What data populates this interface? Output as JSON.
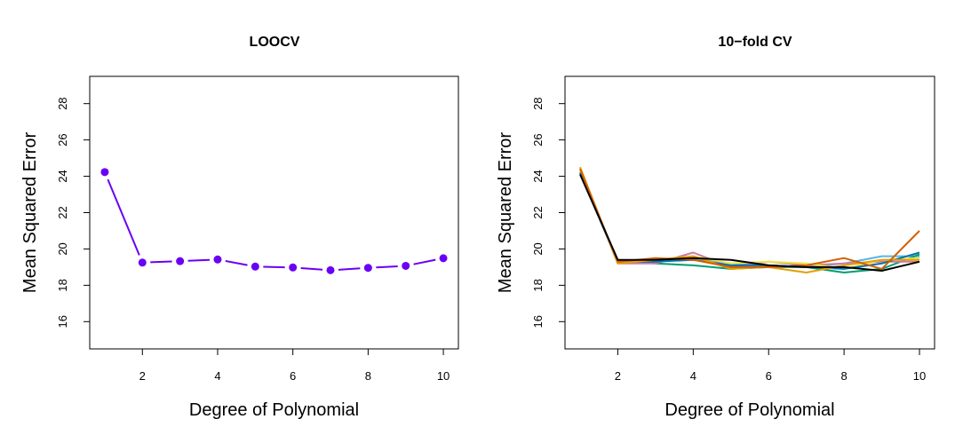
{
  "chart_data": [
    {
      "type": "line",
      "title": "LOOCV",
      "xlabel": "Degree of Polynomial",
      "ylabel": "Mean Squared Error",
      "xlim": [
        0.6,
        10.4
      ],
      "ylim": [
        14.5,
        29.5
      ],
      "xticks": [
        2,
        4,
        6,
        8,
        10
      ],
      "yticks": [
        16,
        18,
        20,
        22,
        24,
        26,
        28
      ],
      "markers": true,
      "series": [
        {
          "color": "#6a00f4",
          "x": [
            1,
            2,
            3,
            4,
            5,
            6,
            7,
            8,
            9,
            10
          ],
          "values": [
            24.23,
            19.25,
            19.33,
            19.42,
            19.03,
            18.98,
            18.83,
            18.96,
            19.07,
            19.49
          ]
        }
      ]
    },
    {
      "type": "line",
      "title": "10−fold CV",
      "xlabel": "Degree of Polynomial",
      "ylabel": "Mean Squared Error",
      "xlim": [
        0.6,
        10.4
      ],
      "ylim": [
        14.5,
        29.5
      ],
      "xticks": [
        2,
        4,
        6,
        8,
        10
      ],
      "yticks": [
        16,
        18,
        20,
        22,
        24,
        26,
        28
      ],
      "markers": false,
      "series": [
        {
          "color": "#56b4e9",
          "x": [
            1,
            2,
            3,
            4,
            5,
            6,
            7,
            8,
            9,
            10
          ],
          "values": [
            24.3,
            19.3,
            19.3,
            19.5,
            19.2,
            19.1,
            19.0,
            19.2,
            19.6,
            19.6
          ]
        },
        {
          "color": "#009e73",
          "x": [
            1,
            2,
            3,
            4,
            5,
            6,
            7,
            8,
            9,
            10
          ],
          "values": [
            24.2,
            19.3,
            19.2,
            19.1,
            18.9,
            19.0,
            19.0,
            18.7,
            18.9,
            19.7
          ]
        },
        {
          "color": "#cc79a7",
          "x": [
            1,
            2,
            3,
            4,
            5,
            6,
            7,
            8,
            9,
            10
          ],
          "values": [
            24.4,
            19.2,
            19.2,
            19.8,
            19.0,
            19.3,
            19.1,
            19.2,
            19.3,
            19.3
          ]
        },
        {
          "color": "#f0e442",
          "x": [
            1,
            2,
            3,
            4,
            5,
            6,
            7,
            8,
            9,
            10
          ],
          "values": [
            24.3,
            19.3,
            19.4,
            19.6,
            19.2,
            19.3,
            19.2,
            18.9,
            19.4,
            19.5
          ]
        },
        {
          "color": "#0072b2",
          "x": [
            1,
            2,
            3,
            4,
            5,
            6,
            7,
            8,
            9,
            10
          ],
          "values": [
            24.2,
            19.3,
            19.3,
            19.4,
            19.1,
            19.1,
            19.0,
            18.9,
            19.2,
            19.8
          ]
        },
        {
          "color": "#e69f00",
          "x": [
            1,
            2,
            3,
            4,
            5,
            6,
            7,
            8,
            9,
            10
          ],
          "values": [
            24.5,
            19.2,
            19.4,
            19.6,
            18.9,
            19.0,
            18.7,
            19.1,
            19.4,
            19.4
          ]
        },
        {
          "color": "#d55e00",
          "x": [
            1,
            2,
            3,
            4,
            5,
            6,
            7,
            8,
            9,
            10
          ],
          "values": [
            24.4,
            19.3,
            19.5,
            19.4,
            19.0,
            19.0,
            19.1,
            19.5,
            18.9,
            21.0
          ]
        },
        {
          "color": "#000000",
          "x": [
            1,
            2,
            3,
            4,
            5,
            6,
            7,
            8,
            9,
            10
          ],
          "values": [
            24.1,
            19.4,
            19.4,
            19.5,
            19.4,
            19.1,
            19.0,
            19.0,
            18.8,
            19.3
          ]
        }
      ]
    }
  ]
}
